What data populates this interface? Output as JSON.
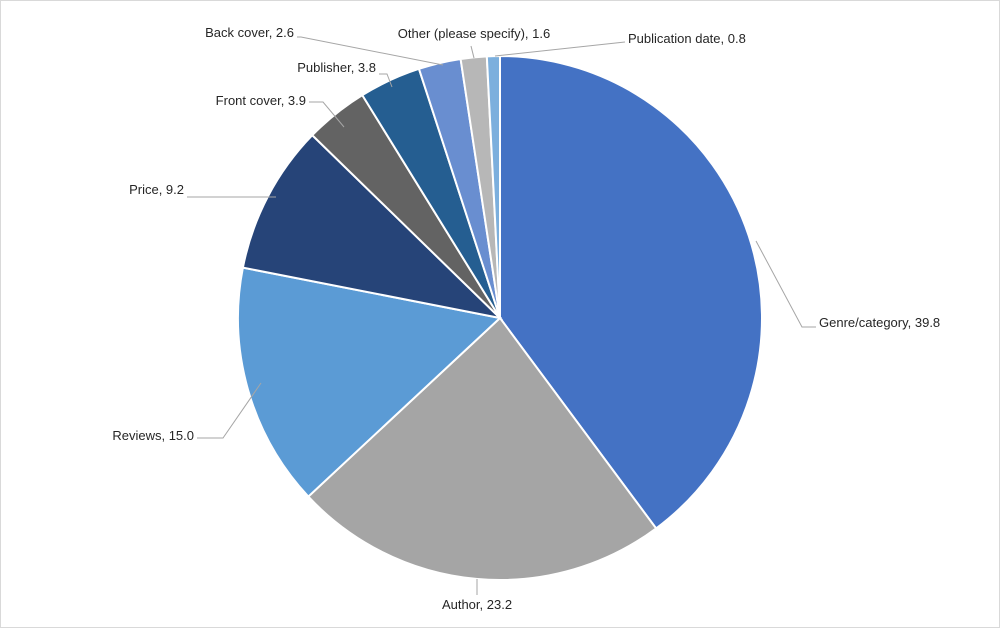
{
  "chart_data": {
    "type": "pie",
    "title": "",
    "slices": [
      {
        "label": "Genre/category",
        "value": 39.8,
        "display": "Genre/category, 39.8",
        "color": "#4472C4"
      },
      {
        "label": "Author",
        "value": 23.2,
        "display": "Author, 23.2",
        "color": "#A5A5A5"
      },
      {
        "label": "Reviews",
        "value": 15.0,
        "display": "Reviews, 15.0",
        "color": "#5B9BD5"
      },
      {
        "label": "Price",
        "value": 9.2,
        "display": "Price, 9.2",
        "color": "#264478"
      },
      {
        "label": "Front cover",
        "value": 3.9,
        "display": "Front cover, 3.9",
        "color": "#636363"
      },
      {
        "label": "Publisher",
        "value": 3.8,
        "display": "Publisher, 3.8",
        "color": "#255E91"
      },
      {
        "label": "Back cover",
        "value": 2.6,
        "display": "Back cover, 2.6",
        "color": "#698ED0"
      },
      {
        "label": "Other (please specify)",
        "value": 1.6,
        "display": "Other (please specify), 1.6",
        "color": "#B7B7B7"
      },
      {
        "label": "Publication date",
        "value": 0.8,
        "display": "Publication date, 0.8",
        "color": "#7CAFDD"
      }
    ],
    "start_angle": "12 o'clock",
    "direction": "clockwise",
    "legend": "none (data labels with leader lines)"
  }
}
